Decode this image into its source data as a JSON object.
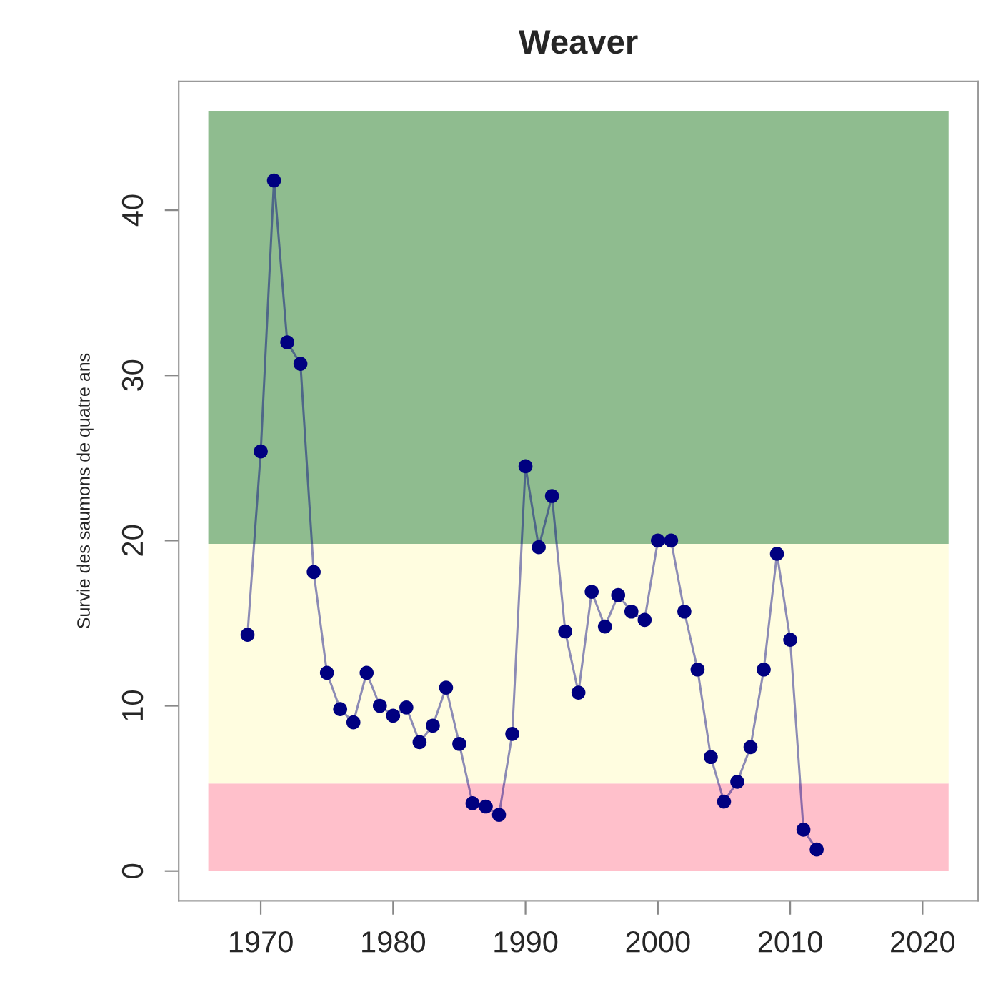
{
  "chart_data": {
    "type": "line",
    "title": "Weaver",
    "ylabel": "Survie des saumons de quatre ans",
    "x": [
      1969,
      1970,
      1971,
      1972,
      1973,
      1974,
      1975,
      1976,
      1977,
      1978,
      1979,
      1980,
      1981,
      1982,
      1983,
      1984,
      1985,
      1986,
      1987,
      1988,
      1989,
      1990,
      1991,
      1992,
      1993,
      1994,
      1995,
      1996,
      1997,
      1998,
      1999,
      2000,
      2001,
      2002,
      2003,
      2004,
      2005,
      2006,
      2007,
      2008,
      2009,
      2010,
      2011,
      2012
    ],
    "series": [
      {
        "color": "#000080",
        "values": [
          14.3,
          25.4,
          41.8,
          32.0,
          30.7,
          18.1,
          12.0,
          9.8,
          9.0,
          12.0,
          10.0,
          9.4,
          9.9,
          7.8,
          8.8,
          11.1,
          7.7,
          4.1,
          3.9,
          3.4,
          8.3,
          24.5,
          19.6,
          22.7,
          14.5,
          10.8,
          16.9,
          14.8,
          16.7,
          15.7,
          15.2,
          20.0,
          20.0,
          15.7,
          12.2,
          6.9,
          4.2,
          5.4,
          7.5,
          12.2,
          19.2,
          14.0,
          2.5,
          1.3
        ]
      }
    ],
    "marker": "circle",
    "line_style": "solid",
    "xlim": [
      1963.8,
      2024.2
    ],
    "ylim": [
      -1.8,
      47.8
    ],
    "xticks": [
      1970,
      1980,
      1990,
      2000,
      2010,
      2020
    ],
    "yticks": [
      0,
      10,
      20,
      30,
      40
    ],
    "bands": [
      {
        "axis": "y",
        "from": 0,
        "to": 5.3,
        "color": "#ffc0cb"
      },
      {
        "axis": "y",
        "from": 5.3,
        "to": 19.8,
        "color": "#fffde0"
      },
      {
        "axis": "y",
        "from": 19.8,
        "to": 46,
        "color": "#8fbc8f"
      }
    ]
  }
}
